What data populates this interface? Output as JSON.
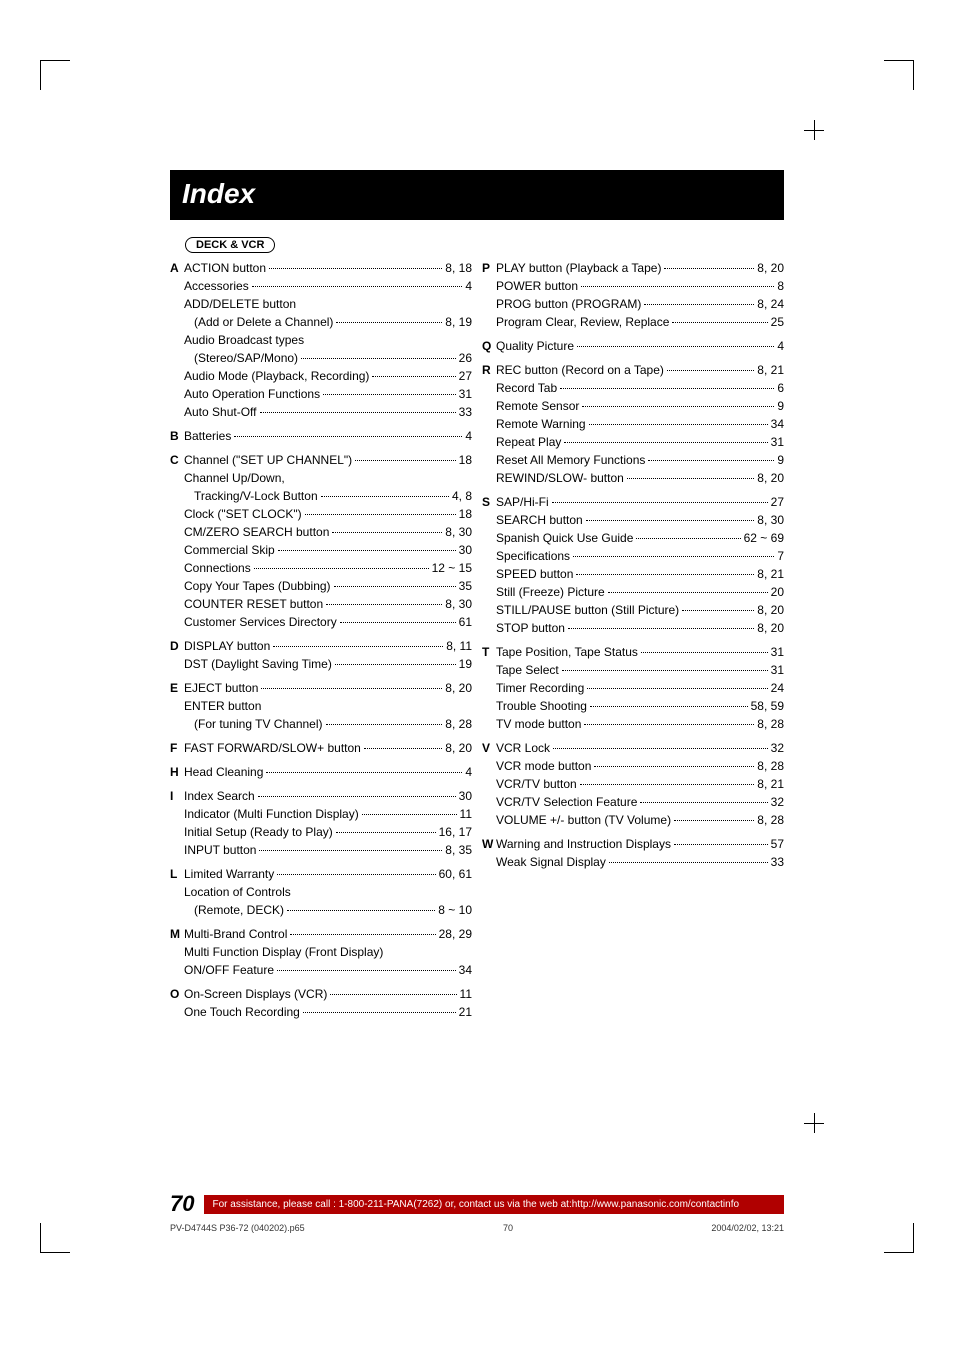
{
  "title": "Index",
  "section_tag": "DECK & VCR",
  "left_col": [
    {
      "l": "A",
      "t": "ACTION button",
      "p": "8, 18"
    },
    {
      "t": "Accessories",
      "p": "4"
    },
    {
      "t": "ADD/DELETE button",
      "nopage": true
    },
    {
      "t": "(Add or Delete a Channel)",
      "p": "8, 19",
      "sub": true
    },
    {
      "t": "Audio Broadcast types",
      "nopage": true
    },
    {
      "t": "(Stereo/SAP/Mono)",
      "p": "26",
      "sub": true
    },
    {
      "t": "Audio Mode (Playback, Recording)",
      "p": "27"
    },
    {
      "t": "Auto Operation Functions",
      "p": "31"
    },
    {
      "t": "Auto Shut-Off",
      "p": "33"
    },
    {
      "l": "B",
      "t": "Batteries",
      "p": "4",
      "gap": true
    },
    {
      "l": "C",
      "t": "Channel (\"SET UP CHANNEL\")",
      "p": "18",
      "gap": true
    },
    {
      "t": "Channel Up/Down,",
      "nopage": true
    },
    {
      "t": "Tracking/V-Lock Button",
      "p": "4, 8",
      "sub": true
    },
    {
      "t": "Clock (\"SET CLOCK\")",
      "p": "18"
    },
    {
      "t": "CM/ZERO SEARCH button",
      "p": "8, 30"
    },
    {
      "t": "Commercial Skip",
      "p": "30"
    },
    {
      "t": "Connections",
      "p": "12 ~ 15"
    },
    {
      "t": "Copy Your Tapes (Dubbing)",
      "p": "35"
    },
    {
      "t": "COUNTER RESET button",
      "p": "8, 30"
    },
    {
      "t": "Customer Services Directory",
      "p": "61"
    },
    {
      "l": "D",
      "t": "DISPLAY button",
      "p": "8, 11",
      "gap": true
    },
    {
      "t": "DST (Daylight Saving Time)",
      "p": "19"
    },
    {
      "l": "E",
      "t": "EJECT button",
      "p": "8, 20",
      "gap": true
    },
    {
      "t": "ENTER button",
      "nopage": true
    },
    {
      "t": "(For tuning TV Channel)",
      "p": "8, 28",
      "sub": true
    },
    {
      "l": "F",
      "t": "FAST FORWARD/SLOW+ button",
      "p": "8, 20",
      "gap": true
    },
    {
      "l": "H",
      "t": "Head Cleaning",
      "p": "4",
      "gap": true
    },
    {
      "l": "I",
      "t": "Index Search",
      "p": "30",
      "gap": true
    },
    {
      "t": "Indicator (Multi Function Display)",
      "p": "11"
    },
    {
      "t": "Initial Setup (Ready to Play)",
      "p": "16, 17"
    },
    {
      "t": "INPUT button",
      "p": "8, 35"
    },
    {
      "l": "L",
      "t": "Limited Warranty",
      "p": "60, 61",
      "gap": true
    },
    {
      "t": "Location of Controls",
      "nopage": true
    },
    {
      "t": "(Remote, DECK)",
      "p": "8 ~ 10",
      "sub": true
    },
    {
      "l": "M",
      "t": "Multi-Brand Control",
      "p": "28, 29",
      "gap": true
    },
    {
      "t": "Multi Function Display (Front Display)",
      "nopage": true
    },
    {
      "t": "ON/OFF Feature",
      "p": "34"
    },
    {
      "l": "O",
      "t": "On-Screen Displays (VCR)",
      "p": "11",
      "gap": true
    },
    {
      "t": "One Touch Recording",
      "p": "21"
    }
  ],
  "right_col": [
    {
      "l": "P",
      "t": "PLAY button (Playback a Tape)",
      "p": "8, 20"
    },
    {
      "t": "POWER button",
      "p": "8"
    },
    {
      "t": "PROG button (PROGRAM)",
      "p": "8, 24"
    },
    {
      "t": "Program Clear, Review, Replace",
      "p": "25"
    },
    {
      "l": "Q",
      "t": "Quality Picture",
      "p": "4",
      "gap": true
    },
    {
      "l": "R",
      "t": "REC button (Record on a Tape)",
      "p": "8, 21",
      "gap": true
    },
    {
      "t": "Record Tab",
      "p": "6"
    },
    {
      "t": "Remote Sensor",
      "p": "9"
    },
    {
      "t": "Remote Warning",
      "p": "34"
    },
    {
      "t": "Repeat Play",
      "p": "31"
    },
    {
      "t": "Reset All Memory Functions",
      "p": "9"
    },
    {
      "t": "REWIND/SLOW- button",
      "p": "8, 20"
    },
    {
      "l": "S",
      "t": "SAP/Hi-Fi",
      "p": "27",
      "gap": true
    },
    {
      "t": "SEARCH button",
      "p": "8, 30"
    },
    {
      "t": "Spanish Quick Use Guide",
      "p": "62 ~ 69"
    },
    {
      "t": "Specifications",
      "p": "7"
    },
    {
      "t": "SPEED button",
      "p": "8, 21"
    },
    {
      "t": "Still (Freeze) Picture",
      "p": "20"
    },
    {
      "t": "STILL/PAUSE button (Still Picture)",
      "p": "8, 20"
    },
    {
      "t": "STOP button",
      "p": "8, 20"
    },
    {
      "l": "T",
      "t": "Tape Position, Tape Status",
      "p": "31",
      "gap": true
    },
    {
      "t": "Tape Select",
      "p": "31"
    },
    {
      "t": "Timer Recording",
      "p": "24"
    },
    {
      "t": "Trouble Shooting",
      "p": "58, 59"
    },
    {
      "t": "TV mode button",
      "p": "8, 28"
    },
    {
      "l": "V",
      "t": "VCR Lock",
      "p": "32",
      "gap": true
    },
    {
      "t": "VCR mode button",
      "p": "8, 28"
    },
    {
      "t": "VCR/TV button",
      "p": "8, 21"
    },
    {
      "t": "VCR/TV Selection Feature",
      "p": "32"
    },
    {
      "t": "VOLUME +/- button (TV Volume)",
      "p": "8, 28"
    },
    {
      "l": "W",
      "t": "Warning and Instruction Displays",
      "p": "57",
      "gap": true
    },
    {
      "t": "Weak Signal Display",
      "p": "33"
    }
  ],
  "page_number": "70",
  "footer_text": "For assistance, please call : 1-800-211-PANA(7262) or, contact us via the web at:http://www.panasonic.com/contactinfo",
  "meta_file": "PV-D4744S P36-72 (040202).p65",
  "meta_page": "70",
  "meta_date": "2004/02/02, 13:21"
}
